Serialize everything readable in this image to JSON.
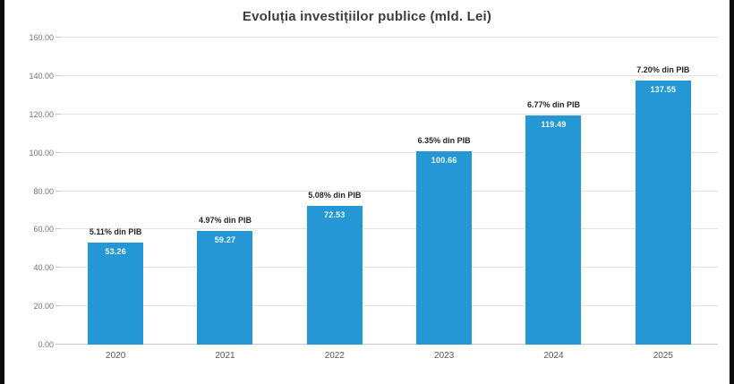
{
  "title": "Evoluția investițiilor publice (mld. Lei)",
  "colors": {
    "bar": "#2497d4",
    "grid": "#e4e4e4",
    "axis": "#c9c9c9",
    "tick_text": "#737373",
    "annotation_text": "#262626",
    "value_text": "#f2fbff",
    "title_text": "#3d3d3d",
    "frame": "#0b0b0b"
  },
  "chart_data": {
    "type": "bar",
    "title": "Evoluția investițiilor publice (mld. Lei)",
    "categories": [
      "2020",
      "2021",
      "2022",
      "2023",
      "2024",
      "2025"
    ],
    "values": [
      53.26,
      59.27,
      72.53,
      100.66,
      119.49,
      137.55
    ],
    "value_labels": [
      "53.26",
      "59.27",
      "72.53",
      "100.66",
      "119.49",
      "137.55"
    ],
    "annotations": [
      "5.11% din PIB",
      "4.97% din PIB",
      "5.08% din PIB",
      "6.35% din PIB",
      "6.77% din PIB",
      "7.20% din PIB"
    ],
    "xlabel": "",
    "ylabel": "",
    "ylim": [
      0,
      160
    ],
    "ytick_step": 20,
    "ytick_labels": [
      "0.00",
      "20.00",
      "40.00",
      "60.00",
      "80.00",
      "100.00",
      "120.00",
      "140.00",
      "160.00"
    ],
    "grid": true,
    "legend": false
  }
}
